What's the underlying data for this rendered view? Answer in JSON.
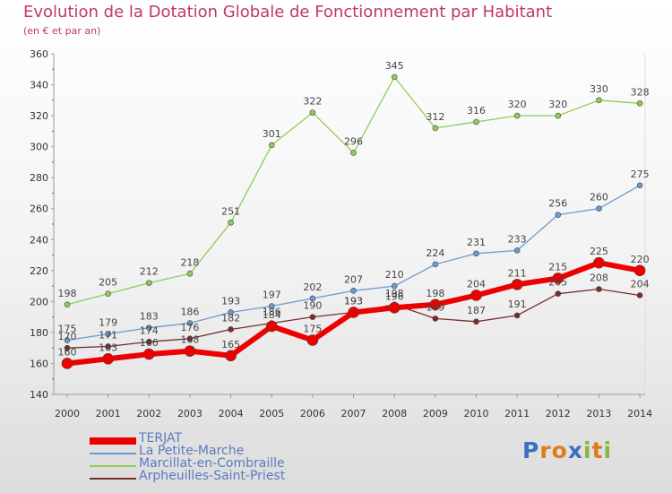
{
  "title": "Evolution de la Dotation Globale de Fonctionnement par Habitant",
  "subtitle": "(en € et par an)",
  "logo": {
    "text": "Proxiti",
    "letters": [
      {
        "ch": "P",
        "color": "#3b6fc0"
      },
      {
        "ch": "r",
        "color": "#e07a1f"
      },
      {
        "ch": "o",
        "color": "#e07a1f"
      },
      {
        "ch": "x",
        "color": "#3b6fc0"
      },
      {
        "ch": "i",
        "color": "#8ab83a"
      },
      {
        "ch": "t",
        "color": "#e07a1f"
      },
      {
        "ch": "i",
        "color": "#8ab83a"
      }
    ]
  },
  "chart_data": {
    "type": "line",
    "title": "Evolution de la Dotation Globale de Fonctionnement par Habitant",
    "ylabel": "(en € et par an)",
    "x": [
      "2000",
      "2001",
      "2002",
      "2003",
      "2004",
      "2005",
      "2006",
      "2007",
      "2008",
      "2009",
      "2010",
      "2011",
      "2012",
      "2013",
      "2014"
    ],
    "ylim": [
      140,
      360
    ],
    "yticks": [
      140,
      160,
      180,
      200,
      220,
      240,
      260,
      280,
      300,
      320,
      340,
      360
    ],
    "grid": false,
    "series": [
      {
        "name": "Marcillat-en-Combraille",
        "color": "#8ccd5a",
        "values": [
          198,
          205,
          212,
          218,
          251,
          301,
          322,
          296,
          345,
          312,
          316,
          320,
          320,
          330,
          328
        ]
      },
      {
        "name": "La Petite-Marche",
        "color": "#6a9bd1",
        "values": [
          175,
          179,
          183,
          186,
          193,
          197,
          202,
          207,
          210,
          224,
          231,
          233,
          256,
          260,
          275
        ]
      },
      {
        "name": "Arpheuilles-Saint-Priest",
        "color": "#7a2c2c",
        "values": [
          170,
          171,
          174,
          176,
          182,
          186,
          190,
          193,
          198,
          189,
          187,
          191,
          205,
          208,
          204
        ]
      },
      {
        "name": "TERJAT",
        "color": "#ee0000",
        "values": [
          160,
          163,
          166,
          168,
          165,
          184,
          175,
          193,
          196,
          198,
          204,
          211,
          215,
          225,
          220
        ]
      }
    ]
  },
  "legend": [
    {
      "name": "TERJAT",
      "color": "#ee0000"
    },
    {
      "name": "La Petite-Marche",
      "color": "#6a9bd1"
    },
    {
      "name": "Marcillat-en-Combraille",
      "color": "#8ccd5a"
    },
    {
      "name": "Arpheuilles-Saint-Priest",
      "color": "#7a2c2c"
    }
  ]
}
